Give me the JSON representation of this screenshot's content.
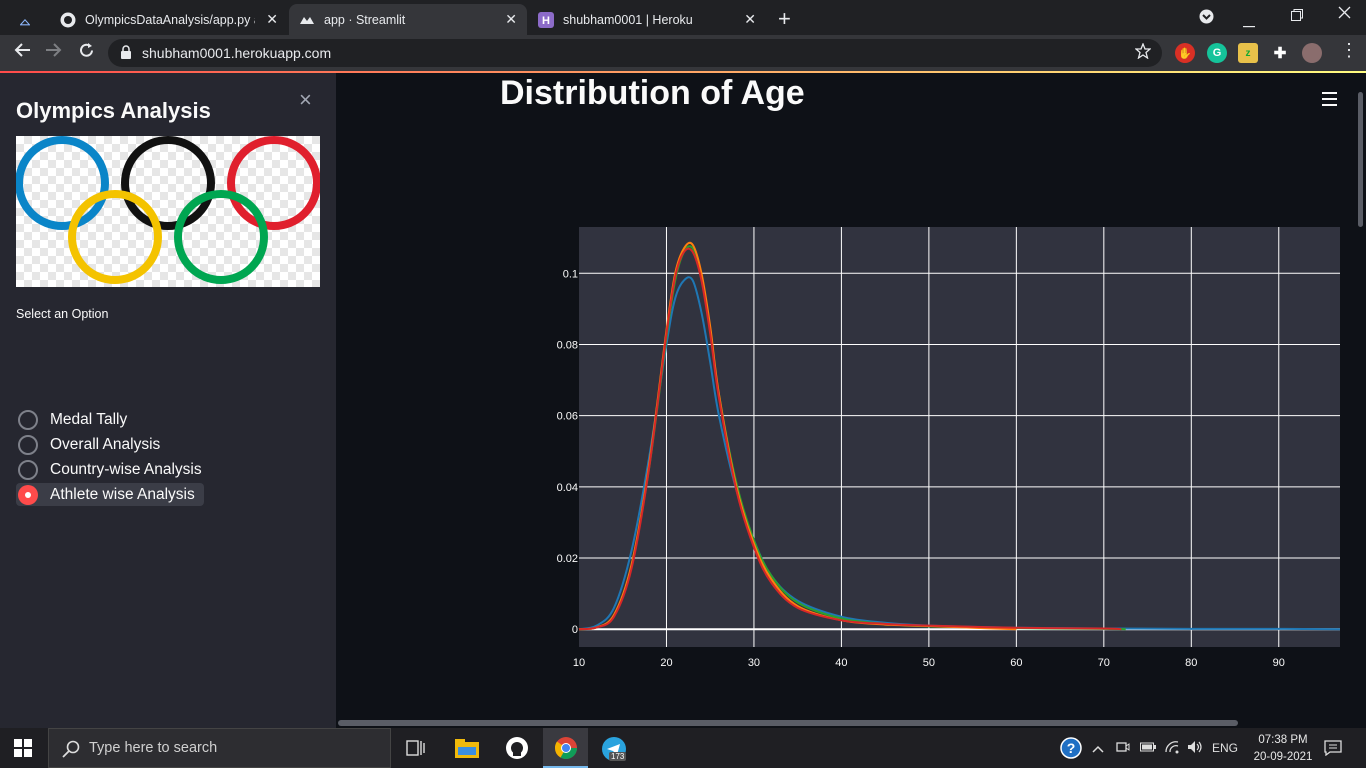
{
  "browser": {
    "tabs": [
      {
        "title": "OlympicsDataAnalysis/app.py at",
        "icon": "github-icon",
        "active": false
      },
      {
        "title": "app · Streamlit",
        "icon": "streamlit-icon",
        "active": true
      },
      {
        "title": "shubham0001 | Heroku",
        "icon": "heroku-icon",
        "active": false
      }
    ],
    "url": "shubham0001.herokuapp.com",
    "close_glyph": "✕",
    "newtab_glyph": "+"
  },
  "sidebar": {
    "close_glyph": "×",
    "title": "Olympics Analysis",
    "select_label": "Select an Option",
    "options": [
      {
        "label": "Medal Tally",
        "selected": false
      },
      {
        "label": "Overall Analysis",
        "selected": false
      },
      {
        "label": "Country-wise Analysis",
        "selected": false
      },
      {
        "label": "Athlete wise Analysis",
        "selected": true
      }
    ]
  },
  "main": {
    "title": "Distribution of Age"
  },
  "chart_data": {
    "type": "line",
    "title": "",
    "xlabel": "",
    "ylabel": "",
    "xlim": [
      10,
      97
    ],
    "ylim": [
      -0.005,
      0.113
    ],
    "xticks": [
      10,
      20,
      30,
      40,
      50,
      60,
      70,
      80,
      90
    ],
    "yticks": [
      0,
      0.02,
      0.04,
      0.06,
      0.08,
      0.1
    ],
    "ytick_labels": [
      "0",
      "0.02",
      "0.04",
      "0.06",
      "0.08",
      "0.1"
    ],
    "grid": true,
    "legend": false,
    "colors": [
      "#1f77b4",
      "#2ca02c",
      "#ff7f0e",
      "#d62728"
    ],
    "series": [
      {
        "color": "#1f77b4",
        "x": [
          10,
          12,
          14,
          16,
          18,
          20,
          21,
          22,
          23,
          24,
          25,
          26,
          28,
          30,
          32,
          35,
          40,
          45,
          50,
          60,
          70,
          80,
          90,
          97
        ],
        "y": [
          0,
          0.001,
          0.006,
          0.022,
          0.048,
          0.08,
          0.093,
          0.098,
          0.098,
          0.089,
          0.075,
          0.06,
          0.039,
          0.025,
          0.015,
          0.008,
          0.0035,
          0.0018,
          0.001,
          0.0004,
          0.0002,
          0.0001,
          0.0001,
          0
        ]
      },
      {
        "color": "#2ca02c",
        "x": [
          10,
          12,
          14,
          16,
          18,
          20,
          21,
          22,
          23,
          24,
          25,
          26,
          28,
          30,
          32,
          35,
          40,
          45,
          50,
          60,
          70,
          72.5
        ],
        "y": [
          0,
          0.0005,
          0.004,
          0.018,
          0.045,
          0.082,
          0.098,
          0.106,
          0.107,
          0.099,
          0.084,
          0.066,
          0.041,
          0.025,
          0.015,
          0.0075,
          0.003,
          0.0015,
          0.0008,
          0.0003,
          0.0001,
          0
        ]
      },
      {
        "color": "#ff7f0e",
        "x": [
          10,
          12,
          14,
          16,
          18,
          20,
          21,
          22,
          23,
          24,
          25,
          26,
          28,
          30,
          32,
          35,
          40,
          45,
          50,
          55,
          60
        ],
        "y": [
          0,
          0.0005,
          0.004,
          0.018,
          0.046,
          0.084,
          0.1,
          0.107,
          0.108,
          0.1,
          0.085,
          0.066,
          0.04,
          0.024,
          0.014,
          0.0065,
          0.0025,
          0.0013,
          0.0009,
          0.0004,
          0
        ]
      },
      {
        "color": "#d62728",
        "x": [
          10,
          12,
          14,
          16,
          18,
          20,
          21,
          22,
          23,
          24,
          25,
          26,
          28,
          30,
          32,
          35,
          40,
          45,
          50,
          60,
          70,
          72
        ],
        "y": [
          0,
          0.0005,
          0.0035,
          0.017,
          0.045,
          0.083,
          0.099,
          0.106,
          0.106,
          0.098,
          0.083,
          0.065,
          0.039,
          0.023,
          0.013,
          0.006,
          0.0025,
          0.0015,
          0.001,
          0.0004,
          0.0002,
          0
        ]
      }
    ]
  },
  "taskbar": {
    "search_placeholder": "Type here to search",
    "telegram_badge": "173",
    "language": "ENG",
    "time": "07:38 PM",
    "date": "20-09-2021"
  }
}
